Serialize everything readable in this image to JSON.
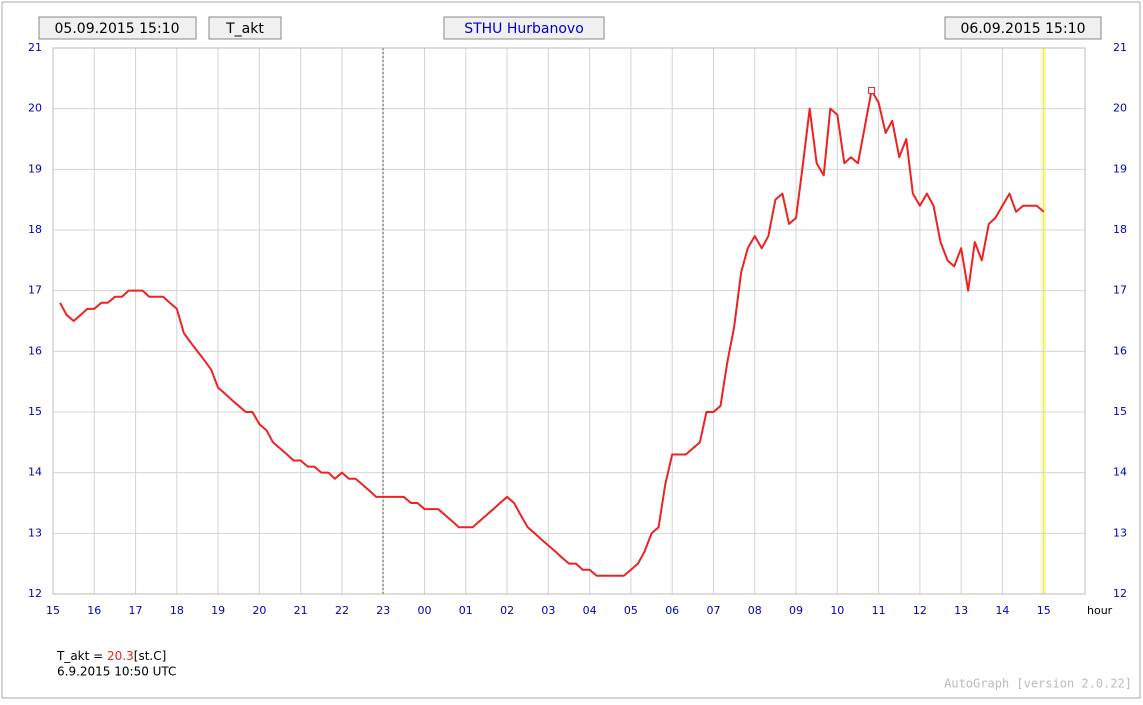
{
  "chart_data": {
    "type": "line",
    "start_label": "05.09.2015 15:10",
    "title": "T_akt",
    "station": "STHU Hurbanovo",
    "end_label": "06.09.2015 15:10",
    "x_unit_label": "hour",
    "xlim": [
      0,
      25
    ],
    "xticks": [
      {
        "value": 0,
        "label": "15"
      },
      {
        "value": 1,
        "label": "16"
      },
      {
        "value": 2,
        "label": "17"
      },
      {
        "value": 3,
        "label": "18"
      },
      {
        "value": 4,
        "label": "19"
      },
      {
        "value": 5,
        "label": "20"
      },
      {
        "value": 6,
        "label": "21"
      },
      {
        "value": 7,
        "label": "22"
      },
      {
        "value": 8,
        "label": "23"
      },
      {
        "value": 9,
        "label": "00"
      },
      {
        "value": 10,
        "label": "01"
      },
      {
        "value": 11,
        "label": "02"
      },
      {
        "value": 12,
        "label": "03"
      },
      {
        "value": 13,
        "label": "04"
      },
      {
        "value": 14,
        "label": "05"
      },
      {
        "value": 15,
        "label": "06"
      },
      {
        "value": 16,
        "label": "07"
      },
      {
        "value": 17,
        "label": "08"
      },
      {
        "value": 18,
        "label": "09"
      },
      {
        "value": 19,
        "label": "10"
      },
      {
        "value": 20,
        "label": "11"
      },
      {
        "value": 21,
        "label": "12"
      },
      {
        "value": 22,
        "label": "13"
      },
      {
        "value": 23,
        "label": "14"
      },
      {
        "value": 24,
        "label": "15"
      }
    ],
    "ylim": [
      12,
      21
    ],
    "yticks": [
      12,
      13,
      14,
      15,
      16,
      17,
      18,
      19,
      20,
      21
    ],
    "grid": true,
    "x": [
      0.17,
      0.33,
      0.5,
      0.67,
      0.83,
      1,
      1.17,
      1.33,
      1.5,
      1.67,
      1.83,
      2.17,
      2.33,
      2.67,
      2.83,
      3,
      3.17,
      3.33,
      3.5,
      3.67,
      3.83,
      4,
      4.17,
      4.33,
      4.5,
      4.67,
      4.83,
      5,
      5.17,
      5.33,
      5.5,
      5.67,
      5.83,
      6,
      6.17,
      6.33,
      6.5,
      6.67,
      6.83,
      7,
      7.17,
      7.33,
      7.5,
      7.67,
      7.83,
      8.17,
      8.5,
      8.67,
      8.83,
      9,
      9.33,
      9.5,
      9.67,
      9.83,
      10.17,
      10.33,
      10.5,
      10.67,
      10.83,
      11,
      11.17,
      11.33,
      11.5,
      11.67,
      11.83,
      12,
      12.17,
      12.33,
      12.5,
      12.67,
      12.83,
      13,
      13.17,
      13.83,
      14,
      14.17,
      14.33,
      14.5,
      14.67,
      14.83,
      15,
      15.33,
      15.5,
      15.67,
      15.83,
      16,
      16.17,
      16.33,
      16.5,
      16.67,
      16.83,
      17,
      17.17,
      17.33,
      17.5,
      17.67,
      17.83,
      18,
      18.17,
      18.33,
      18.5,
      18.67,
      18.83,
      19,
      19.17,
      19.33,
      19.5,
      19.83,
      20,
      20.17,
      20.33,
      20.5,
      20.67,
      20.83,
      21,
      21.17,
      21.33,
      21.5,
      21.67,
      21.83,
      22,
      22.17,
      22.33,
      22.5,
      22.67,
      22.83,
      23,
      23.17,
      23.33,
      23.5,
      23.83,
      24
    ],
    "series": [
      {
        "name": "T_akt",
        "color": "#ee2222",
        "values": [
          16.8,
          16.6,
          16.5,
          16.6,
          16.7,
          16.7,
          16.8,
          16.8,
          16.9,
          16.9,
          17.0,
          17.0,
          16.9,
          16.9,
          16.8,
          16.7,
          16.3,
          16.15,
          16.0,
          15.85,
          15.7,
          15.4,
          15.3,
          15.2,
          15.1,
          15.0,
          15.0,
          14.8,
          14.7,
          14.5,
          14.4,
          14.3,
          14.2,
          14.2,
          14.1,
          14.1,
          14.0,
          14.0,
          13.9,
          14.0,
          13.9,
          13.9,
          13.8,
          13.7,
          13.6,
          13.6,
          13.6,
          13.5,
          13.5,
          13.4,
          13.4,
          13.3,
          13.2,
          13.1,
          13.1,
          13.2,
          13.3,
          13.4,
          13.5,
          13.6,
          13.5,
          13.3,
          13.1,
          13.0,
          12.9,
          12.8,
          12.7,
          12.6,
          12.5,
          12.5,
          12.4,
          12.4,
          12.3,
          12.3,
          12.4,
          12.5,
          12.7,
          13.0,
          13.1,
          13.8,
          14.3,
          14.3,
          14.4,
          14.5,
          15.0,
          15.0,
          15.1,
          15.8,
          16.4,
          17.3,
          17.7,
          17.9,
          17.7,
          17.9,
          18.5,
          18.6,
          18.1,
          18.2,
          19.1,
          20.0,
          19.1,
          18.9,
          20.0,
          19.9,
          19.1,
          19.2,
          19.1,
          20.3,
          20.1,
          19.6,
          19.8,
          19.2,
          19.5,
          18.6,
          18.4,
          18.6,
          18.4,
          17.8,
          17.5,
          17.4,
          17.7,
          17.0,
          17.8,
          17.5,
          18.1,
          18.2,
          18.4,
          18.6,
          18.3,
          18.4,
          18.4,
          18.3
        ]
      }
    ],
    "readout": {
      "label": "T_akt =",
      "value": 20.3,
      "unit": "[st.C]",
      "time": "6.9.2015 10:50 UTC"
    },
    "footer": "AutoGraph [version 2.0.22]"
  }
}
